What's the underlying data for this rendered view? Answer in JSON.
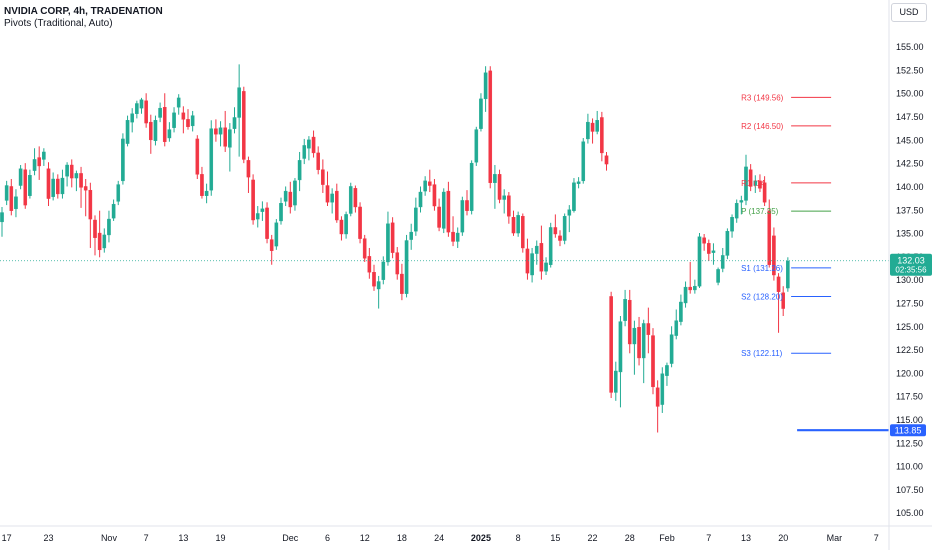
{
  "header": {
    "title": "NVIDIA CORP, 4h, TRADENATION",
    "indicator": "Pivots (Traditional, Auto)",
    "currency": "USD"
  },
  "price_badges": {
    "last_price": "132.03",
    "countdown": "02:35:56",
    "level_price": "113.85"
  },
  "colors": {
    "up": "#22ab94",
    "down": "#f23645",
    "resistance": "#f23645",
    "pivot": "#43a047",
    "support": "#2962ff",
    "axis_text": "#131722"
  },
  "chart_data": {
    "type": "candlestick",
    "symbol": "NVIDIA CORP",
    "timeframe": "4h",
    "ylim": [
      104,
      157
    ],
    "y_ticks": [
      105,
      107.5,
      110,
      112.5,
      115,
      117.5,
      120,
      122.5,
      125,
      127.5,
      130,
      132.5,
      135,
      137.5,
      140,
      142.5,
      145,
      147.5,
      150,
      152.5,
      155
    ],
    "y_tick_labels": [
      "105.00",
      "107.50",
      "110.00",
      "112.50",
      "115.00",
      "117.50",
      "120.00",
      "122.50",
      "125.00",
      "127.50",
      "130.00",
      "132.50",
      "135.00",
      "137.50",
      "140.00",
      "142.50",
      "145.00",
      "147.50",
      "150.00",
      "152.50",
      "155.00"
    ],
    "x_ticks": [
      {
        "i": 1,
        "label": "17"
      },
      {
        "i": 10,
        "label": "23"
      },
      {
        "i": 23,
        "label": "Nov"
      },
      {
        "i": 31,
        "label": "7"
      },
      {
        "i": 39,
        "label": "13"
      },
      {
        "i": 47,
        "label": "19"
      },
      {
        "i": 62,
        "label": "Dec"
      },
      {
        "i": 70,
        "label": "6"
      },
      {
        "i": 78,
        "label": "12"
      },
      {
        "i": 86,
        "label": "18"
      },
      {
        "i": 94,
        "label": "24"
      },
      {
        "i": 103,
        "label": "2025",
        "bold": true
      },
      {
        "i": 111,
        "label": "8"
      },
      {
        "i": 119,
        "label": "15"
      },
      {
        "i": 127,
        "label": "22"
      },
      {
        "i": 135,
        "label": "28"
      },
      {
        "i": 143,
        "label": "Feb"
      },
      {
        "i": 152,
        "label": "7"
      },
      {
        "i": 160,
        "label": "13"
      },
      {
        "i": 168,
        "label": "20"
      },
      {
        "i": 179,
        "label": "Mar"
      },
      {
        "i": 188,
        "label": "7"
      }
    ],
    "candle_spacing_index": {
      "first": 0,
      "last": 174
    },
    "candles": [
      {
        "o": 136.2,
        "h": 137.8,
        "l": 134.6,
        "c": 137.2
      },
      {
        "o": 138.5,
        "h": 140.6,
        "l": 138.0,
        "c": 140.1
      },
      {
        "o": 140.0,
        "h": 140.8,
        "l": 136.9,
        "c": 137.4
      },
      {
        "o": 137.6,
        "h": 139.7,
        "l": 136.7,
        "c": 138.9
      },
      {
        "o": 140.1,
        "h": 142.3,
        "l": 139.7,
        "c": 141.9
      },
      {
        "o": 141.8,
        "h": 142.5,
        "l": 137.6,
        "c": 138.0
      },
      {
        "o": 139.0,
        "h": 141.8,
        "l": 138.7,
        "c": 141.2
      },
      {
        "o": 141.7,
        "h": 144.1,
        "l": 141.2,
        "c": 142.9
      },
      {
        "o": 143.1,
        "h": 144.3,
        "l": 140.7,
        "c": 142.2
      },
      {
        "o": 142.9,
        "h": 144.1,
        "l": 142.2,
        "c": 143.7
      },
      {
        "o": 141.9,
        "h": 142.6,
        "l": 137.9,
        "c": 138.7
      },
      {
        "o": 138.9,
        "h": 141.5,
        "l": 138.5,
        "c": 140.8
      },
      {
        "o": 140.8,
        "h": 141.3,
        "l": 138.7,
        "c": 139.2
      },
      {
        "o": 139.2,
        "h": 141.8,
        "l": 138.7,
        "c": 140.9
      },
      {
        "o": 141.1,
        "h": 142.6,
        "l": 140.0,
        "c": 142.3
      },
      {
        "o": 142.3,
        "h": 142.9,
        "l": 139.9,
        "c": 140.9
      },
      {
        "o": 140.9,
        "h": 141.7,
        "l": 139.5,
        "c": 141.4
      },
      {
        "o": 141.4,
        "h": 142.1,
        "l": 137.7,
        "c": 139.9
      },
      {
        "o": 140.0,
        "h": 140.8,
        "l": 136.8,
        "c": 139.6
      },
      {
        "o": 139.6,
        "h": 140.4,
        "l": 133.4,
        "c": 136.5
      },
      {
        "o": 136.4,
        "h": 136.9,
        "l": 132.6,
        "c": 134.5
      },
      {
        "o": 135.0,
        "h": 137.4,
        "l": 132.4,
        "c": 133.2
      },
      {
        "o": 133.4,
        "h": 135.5,
        "l": 132.9,
        "c": 134.8
      },
      {
        "o": 134.8,
        "h": 137.4,
        "l": 134.0,
        "c": 136.5
      },
      {
        "o": 136.6,
        "h": 138.6,
        "l": 136.3,
        "c": 138.1
      },
      {
        "o": 138.4,
        "h": 140.6,
        "l": 138.0,
        "c": 140.2
      },
      {
        "o": 140.6,
        "h": 145.7,
        "l": 140.2,
        "c": 145.1
      },
      {
        "o": 144.6,
        "h": 147.6,
        "l": 144.3,
        "c": 147.1
      },
      {
        "o": 146.9,
        "h": 148.4,
        "l": 145.8,
        "c": 147.8
      },
      {
        "o": 147.8,
        "h": 149.2,
        "l": 147.3,
        "c": 148.9
      },
      {
        "o": 148.4,
        "h": 149.5,
        "l": 147.8,
        "c": 149.3
      },
      {
        "o": 149.2,
        "h": 150.0,
        "l": 146.3,
        "c": 146.8
      },
      {
        "o": 146.9,
        "h": 147.7,
        "l": 143.5,
        "c": 145.0
      },
      {
        "o": 144.9,
        "h": 147.6,
        "l": 144.4,
        "c": 147.1
      },
      {
        "o": 147.4,
        "h": 149.0,
        "l": 146.9,
        "c": 148.4
      },
      {
        "o": 148.5,
        "h": 150.0,
        "l": 144.3,
        "c": 144.8
      },
      {
        "o": 145.2,
        "h": 146.9,
        "l": 144.8,
        "c": 146.1
      },
      {
        "o": 146.3,
        "h": 148.5,
        "l": 145.8,
        "c": 147.9
      },
      {
        "o": 148.5,
        "h": 149.9,
        "l": 147.7,
        "c": 149.5
      },
      {
        "o": 147.9,
        "h": 148.6,
        "l": 145.7,
        "c": 147.2
      },
      {
        "o": 147.2,
        "h": 148.3,
        "l": 146.1,
        "c": 146.4
      },
      {
        "o": 146.5,
        "h": 148.1,
        "l": 145.9,
        "c": 147.6
      },
      {
        "o": 145.1,
        "h": 145.5,
        "l": 140.8,
        "c": 141.3
      },
      {
        "o": 141.3,
        "h": 142.1,
        "l": 138.7,
        "c": 139.0
      },
      {
        "o": 139.0,
        "h": 140.3,
        "l": 138.2,
        "c": 139.5
      },
      {
        "o": 139.6,
        "h": 147.1,
        "l": 139.0,
        "c": 146.2
      },
      {
        "o": 146.2,
        "h": 147.2,
        "l": 144.8,
        "c": 145.6
      },
      {
        "o": 145.6,
        "h": 147.0,
        "l": 144.3,
        "c": 146.3
      },
      {
        "o": 146.3,
        "h": 148.1,
        "l": 143.7,
        "c": 144.3
      },
      {
        "o": 144.2,
        "h": 146.8,
        "l": 141.6,
        "c": 146.1
      },
      {
        "o": 146.2,
        "h": 148.5,
        "l": 145.7,
        "c": 147.4
      },
      {
        "o": 147.4,
        "h": 153.1,
        "l": 143.2,
        "c": 150.6
      },
      {
        "o": 150.2,
        "h": 150.7,
        "l": 142.5,
        "c": 142.9
      },
      {
        "o": 142.8,
        "h": 143.2,
        "l": 139.3,
        "c": 141.0
      },
      {
        "o": 140.7,
        "h": 141.3,
        "l": 135.9,
        "c": 136.4
      },
      {
        "o": 136.5,
        "h": 137.9,
        "l": 135.6,
        "c": 137.1
      },
      {
        "o": 137.3,
        "h": 138.4,
        "l": 136.3,
        "c": 137.6
      },
      {
        "o": 137.7,
        "h": 138.3,
        "l": 133.9,
        "c": 134.4
      },
      {
        "o": 134.3,
        "h": 134.8,
        "l": 131.6,
        "c": 133.1
      },
      {
        "o": 133.6,
        "h": 136.5,
        "l": 133.2,
        "c": 136.1
      },
      {
        "o": 136.3,
        "h": 138.8,
        "l": 135.9,
        "c": 138.2
      },
      {
        "o": 138.4,
        "h": 140.0,
        "l": 137.9,
        "c": 139.5
      },
      {
        "o": 139.4,
        "h": 140.5,
        "l": 137.1,
        "c": 137.8
      },
      {
        "o": 138.0,
        "h": 140.9,
        "l": 137.4,
        "c": 140.6
      },
      {
        "o": 140.7,
        "h": 143.7,
        "l": 139.5,
        "c": 142.8
      },
      {
        "o": 143.0,
        "h": 145.1,
        "l": 142.4,
        "c": 144.4
      },
      {
        "o": 144.1,
        "h": 145.4,
        "l": 142.8,
        "c": 145.0
      },
      {
        "o": 145.3,
        "h": 146.0,
        "l": 143.1,
        "c": 143.6
      },
      {
        "o": 143.6,
        "h": 144.3,
        "l": 141.3,
        "c": 141.8
      },
      {
        "o": 141.8,
        "h": 142.9,
        "l": 139.3,
        "c": 140.2
      },
      {
        "o": 140.1,
        "h": 141.6,
        "l": 137.9,
        "c": 138.3
      },
      {
        "o": 138.3,
        "h": 139.8,
        "l": 137.1,
        "c": 139.2
      },
      {
        "o": 139.5,
        "h": 140.3,
        "l": 136.1,
        "c": 136.4
      },
      {
        "o": 136.4,
        "h": 136.8,
        "l": 134.2,
        "c": 134.9
      },
      {
        "o": 134.9,
        "h": 137.3,
        "l": 134.4,
        "c": 137.0
      },
      {
        "o": 137.1,
        "h": 140.4,
        "l": 136.8,
        "c": 140.0
      },
      {
        "o": 139.8,
        "h": 140.1,
        "l": 137.2,
        "c": 137.8
      },
      {
        "o": 137.8,
        "h": 138.3,
        "l": 133.9,
        "c": 134.4
      },
      {
        "o": 134.4,
        "h": 134.8,
        "l": 131.9,
        "c": 132.3
      },
      {
        "o": 132.5,
        "h": 133.4,
        "l": 130.1,
        "c": 130.8
      },
      {
        "o": 130.8,
        "h": 131.6,
        "l": 128.8,
        "c": 129.3
      },
      {
        "o": 129.0,
        "h": 130.4,
        "l": 126.9,
        "c": 129.8
      },
      {
        "o": 130.0,
        "h": 132.5,
        "l": 129.5,
        "c": 131.9
      },
      {
        "o": 131.9,
        "h": 137.3,
        "l": 131.5,
        "c": 136.0
      },
      {
        "o": 136.1,
        "h": 136.7,
        "l": 132.3,
        "c": 132.9
      },
      {
        "o": 132.9,
        "h": 133.5,
        "l": 130.0,
        "c": 130.6
      },
      {
        "o": 130.6,
        "h": 131.7,
        "l": 127.8,
        "c": 128.5
      },
      {
        "o": 128.5,
        "h": 134.8,
        "l": 128.1,
        "c": 134.2
      },
      {
        "o": 134.3,
        "h": 136.0,
        "l": 133.2,
        "c": 135.1
      },
      {
        "o": 135.2,
        "h": 138.8,
        "l": 134.7,
        "c": 137.7
      },
      {
        "o": 137.8,
        "h": 140.0,
        "l": 137.2,
        "c": 139.4
      },
      {
        "o": 139.5,
        "h": 141.1,
        "l": 139.0,
        "c": 140.6
      },
      {
        "o": 140.5,
        "h": 141.8,
        "l": 139.4,
        "c": 140.1
      },
      {
        "o": 140.2,
        "h": 140.8,
        "l": 137.4,
        "c": 137.9
      },
      {
        "o": 137.8,
        "h": 138.7,
        "l": 135.2,
        "c": 135.6
      },
      {
        "o": 135.5,
        "h": 139.8,
        "l": 135.0,
        "c": 139.4
      },
      {
        "o": 139.5,
        "h": 140.5,
        "l": 134.6,
        "c": 135.1
      },
      {
        "o": 135.1,
        "h": 136.8,
        "l": 133.6,
        "c": 134.1
      },
      {
        "o": 134.1,
        "h": 135.6,
        "l": 133.4,
        "c": 135.0
      },
      {
        "o": 135.1,
        "h": 138.9,
        "l": 134.7,
        "c": 138.5
      },
      {
        "o": 138.5,
        "h": 139.6,
        "l": 136.9,
        "c": 137.4
      },
      {
        "o": 137.4,
        "h": 142.8,
        "l": 137.0,
        "c": 142.5
      },
      {
        "o": 142.6,
        "h": 146.4,
        "l": 142.2,
        "c": 146.1
      },
      {
        "o": 146.2,
        "h": 150.0,
        "l": 145.9,
        "c": 149.4
      },
      {
        "o": 149.4,
        "h": 152.9,
        "l": 148.0,
        "c": 152.2
      },
      {
        "o": 152.4,
        "h": 152.9,
        "l": 139.8,
        "c": 140.4
      },
      {
        "o": 140.4,
        "h": 142.3,
        "l": 137.6,
        "c": 141.3
      },
      {
        "o": 141.3,
        "h": 141.8,
        "l": 138.2,
        "c": 138.6
      },
      {
        "o": 138.6,
        "h": 139.7,
        "l": 137.1,
        "c": 139.0
      },
      {
        "o": 139.0,
        "h": 139.4,
        "l": 136.0,
        "c": 136.8
      },
      {
        "o": 136.7,
        "h": 137.4,
        "l": 134.7,
        "c": 135.0
      },
      {
        "o": 135.0,
        "h": 137.3,
        "l": 134.6,
        "c": 136.9
      },
      {
        "o": 136.8,
        "h": 137.1,
        "l": 132.9,
        "c": 133.4
      },
      {
        "o": 133.3,
        "h": 134.4,
        "l": 130.0,
        "c": 130.7
      },
      {
        "o": 130.5,
        "h": 133.4,
        "l": 129.7,
        "c": 132.8
      },
      {
        "o": 132.8,
        "h": 134.2,
        "l": 131.6,
        "c": 133.6
      },
      {
        "o": 133.9,
        "h": 135.8,
        "l": 130.0,
        "c": 130.9
      },
      {
        "o": 130.9,
        "h": 132.4,
        "l": 130.5,
        "c": 131.8
      },
      {
        "o": 131.6,
        "h": 136.1,
        "l": 131.3,
        "c": 135.6
      },
      {
        "o": 135.6,
        "h": 137.0,
        "l": 134.5,
        "c": 134.9
      },
      {
        "o": 134.7,
        "h": 135.3,
        "l": 133.6,
        "c": 134.2
      },
      {
        "o": 134.2,
        "h": 137.1,
        "l": 133.8,
        "c": 136.8
      },
      {
        "o": 136.9,
        "h": 138.0,
        "l": 135.1,
        "c": 137.5
      },
      {
        "o": 137.4,
        "h": 140.9,
        "l": 137.2,
        "c": 140.4
      },
      {
        "o": 140.3,
        "h": 141.0,
        "l": 139.8,
        "c": 140.5
      },
      {
        "o": 140.6,
        "h": 145.2,
        "l": 140.3,
        "c": 144.8
      },
      {
        "o": 145.1,
        "h": 147.8,
        "l": 144.6,
        "c": 146.9
      },
      {
        "o": 146.8,
        "h": 147.3,
        "l": 144.6,
        "c": 145.9
      },
      {
        "o": 145.9,
        "h": 148.1,
        "l": 145.6,
        "c": 147.1
      },
      {
        "o": 147.4,
        "h": 148.0,
        "l": 142.7,
        "c": 143.6
      },
      {
        "o": 143.3,
        "h": 143.7,
        "l": 141.7,
        "c": 142.4
      },
      {
        "o": 128.2,
        "h": 128.7,
        "l": 117.3,
        "c": 117.9
      },
      {
        "o": 117.9,
        "h": 121.2,
        "l": 117.0,
        "c": 120.2
      },
      {
        "o": 120.1,
        "h": 126.1,
        "l": 116.3,
        "c": 125.5
      },
      {
        "o": 125.6,
        "h": 128.9,
        "l": 125.0,
        "c": 127.9
      },
      {
        "o": 127.8,
        "h": 128.9,
        "l": 122.1,
        "c": 123.1
      },
      {
        "o": 123.1,
        "h": 125.6,
        "l": 119.8,
        "c": 124.8
      },
      {
        "o": 124.9,
        "h": 126.0,
        "l": 120.8,
        "c": 121.6
      },
      {
        "o": 121.6,
        "h": 125.7,
        "l": 118.9,
        "c": 125.3
      },
      {
        "o": 125.3,
        "h": 127.0,
        "l": 122.1,
        "c": 124.1
      },
      {
        "o": 124.0,
        "h": 124.8,
        "l": 117.7,
        "c": 118.5
      },
      {
        "o": 118.4,
        "h": 119.2,
        "l": 113.6,
        "c": 116.4
      },
      {
        "o": 116.6,
        "h": 120.6,
        "l": 115.7,
        "c": 119.9
      },
      {
        "o": 119.7,
        "h": 121.1,
        "l": 118.6,
        "c": 120.8
      },
      {
        "o": 121.0,
        "h": 125.0,
        "l": 120.6,
        "c": 124.1
      },
      {
        "o": 124.0,
        "h": 126.8,
        "l": 123.6,
        "c": 125.6
      },
      {
        "o": 125.5,
        "h": 128.4,
        "l": 125.1,
        "c": 127.6
      },
      {
        "o": 127.5,
        "h": 129.8,
        "l": 127.0,
        "c": 129.2
      },
      {
        "o": 129.2,
        "h": 131.9,
        "l": 128.5,
        "c": 128.9
      },
      {
        "o": 128.9,
        "h": 130.0,
        "l": 128.5,
        "c": 129.3
      },
      {
        "o": 129.3,
        "h": 135.0,
        "l": 129.1,
        "c": 134.6
      },
      {
        "o": 134.5,
        "h": 134.9,
        "l": 133.1,
        "c": 133.9
      },
      {
        "o": 133.9,
        "h": 134.3,
        "l": 132.0,
        "c": 132.8
      },
      {
        "o": 132.9,
        "h": 133.9,
        "l": 131.6,
        "c": 133.1
      },
      {
        "o": 129.7,
        "h": 131.3,
        "l": 129.4,
        "c": 131.1
      },
      {
        "o": 131.2,
        "h": 133.4,
        "l": 130.8,
        "c": 132.6
      },
      {
        "o": 132.6,
        "h": 135.5,
        "l": 132.2,
        "c": 135.2
      },
      {
        "o": 135.2,
        "h": 137.0,
        "l": 134.5,
        "c": 136.7
      },
      {
        "o": 136.6,
        "h": 138.6,
        "l": 136.1,
        "c": 138.2
      },
      {
        "o": 138.3,
        "h": 139.0,
        "l": 137.0,
        "c": 138.5
      },
      {
        "o": 138.5,
        "h": 143.4,
        "l": 138.0,
        "c": 142.1
      },
      {
        "o": 141.8,
        "h": 142.4,
        "l": 139.5,
        "c": 140.0
      },
      {
        "o": 140.1,
        "h": 141.2,
        "l": 139.3,
        "c": 140.6
      },
      {
        "o": 140.6,
        "h": 141.3,
        "l": 139.4,
        "c": 139.8
      },
      {
        "o": 140.4,
        "h": 141.1,
        "l": 137.9,
        "c": 138.3
      },
      {
        "o": 137.4,
        "h": 138.6,
        "l": 131.3,
        "c": 131.6
      },
      {
        "o": 134.7,
        "h": 135.6,
        "l": 129.9,
        "c": 130.5
      },
      {
        "o": 130.3,
        "h": 130.7,
        "l": 124.3,
        "c": 128.7
      },
      {
        "o": 128.6,
        "h": 129.3,
        "l": 126.1,
        "c": 126.9
      },
      {
        "o": 129.1,
        "h": 132.4,
        "l": 128.7,
        "c": 132.0
      }
    ],
    "pivot_levels": [
      {
        "name": "R3",
        "value": 149.56,
        "label": "R3 (149.56)",
        "kind": "resistance"
      },
      {
        "name": "R2",
        "value": 146.5,
        "label": "R2 (146.50)",
        "kind": "resistance"
      },
      {
        "name": "R1",
        "value": 140.38,
        "label": "R1 (14",
        "kind": "resistance"
      },
      {
        "name": "P",
        "value": 137.35,
        "label": "P (137.35)",
        "kind": "pivot"
      },
      {
        "name": "S1",
        "value": 131.26,
        "label": "S1 (131.26)",
        "kind": "support"
      },
      {
        "name": "S2",
        "value": 128.2,
        "label": "S2 (128.20)",
        "kind": "support"
      },
      {
        "name": "S3",
        "value": 122.11,
        "label": "S3 (122.11)",
        "kind": "support"
      }
    ],
    "last_price_line": 132.03,
    "horizontal_level": 113.85
  }
}
